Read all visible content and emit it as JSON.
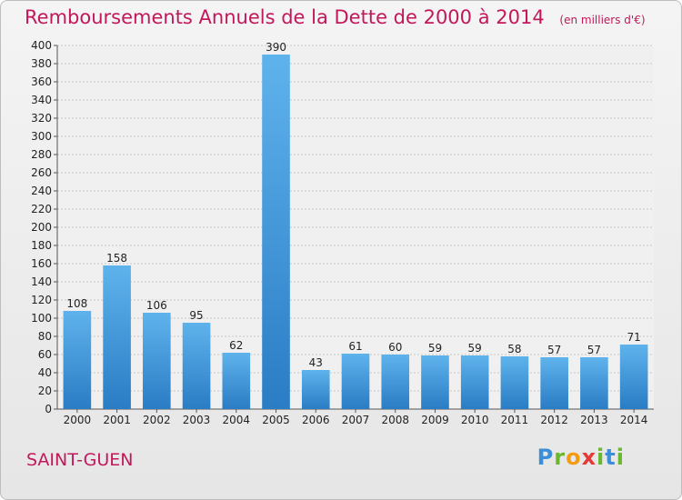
{
  "chart_data": {
    "type": "bar",
    "title": "Remboursements Annuels de la Dette de 2000 à 2014",
    "subtitle": "(en milliers d'€)",
    "categories": [
      "2000",
      "2001",
      "2002",
      "2003",
      "2004",
      "2005",
      "2006",
      "2007",
      "2008",
      "2009",
      "2010",
      "2011",
      "2012",
      "2013",
      "2014"
    ],
    "values": [
      108,
      158,
      106,
      95,
      62,
      390,
      43,
      61,
      60,
      59,
      59,
      58,
      57,
      57,
      71
    ],
    "ylim": [
      0,
      400
    ],
    "yticks": [
      0,
      20,
      40,
      60,
      80,
      100,
      120,
      140,
      160,
      180,
      200,
      220,
      240,
      260,
      280,
      300,
      320,
      340,
      360,
      380,
      400
    ],
    "xlabel": "",
    "ylabel": "",
    "grid": true,
    "bar_color": "#3a8fd8"
  },
  "footer": {
    "town": "SAINT-GUEN",
    "logo_text": "Proxiti"
  }
}
